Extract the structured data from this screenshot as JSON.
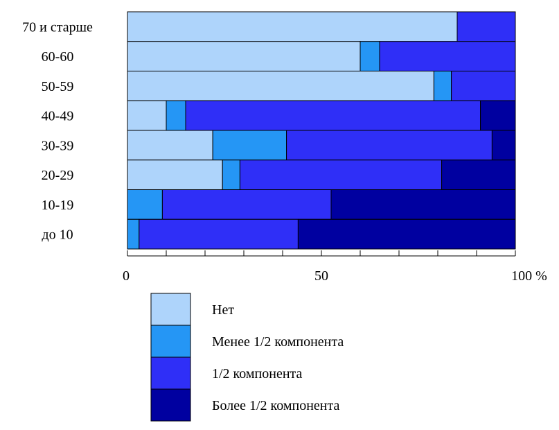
{
  "chart_data": {
    "type": "bar",
    "orientation": "horizontal",
    "stacked": true,
    "categories": [
      "70 и старше",
      "60-60",
      "50-59",
      "40-49",
      "30-39",
      "20-29",
      "10-19",
      "до 10"
    ],
    "series": [
      {
        "name": "Нет",
        "color": "#aed4fb",
        "values": [
          85,
          60,
          79,
          10,
          22,
          24.5,
          0,
          0
        ]
      },
      {
        "name": "Менее 1/2 компонента",
        "color": "#2596f5",
        "values": [
          0,
          5,
          4.5,
          5,
          19,
          4.5,
          9,
          3
        ]
      },
      {
        "name": "1/2 компонента",
        "color": "#2f2ff7",
        "values": [
          15,
          35,
          16.5,
          76,
          53,
          52,
          43.5,
          41
        ]
      },
      {
        "name": "Более 1/2 компонента",
        "color": "#0000a0",
        "values": [
          0,
          0,
          0,
          9,
          6,
          19,
          47.5,
          56
        ]
      }
    ],
    "x_ticks": [
      {
        "value": 0,
        "label": "0"
      },
      {
        "value": 50,
        "label": "50"
      },
      {
        "value": 100,
        "label": "100 %"
      }
    ],
    "xlim": [
      0,
      100
    ],
    "minor_tick_step": 10,
    "legend_position": "bottom",
    "title": "",
    "xlabel": "",
    "ylabel": ""
  }
}
